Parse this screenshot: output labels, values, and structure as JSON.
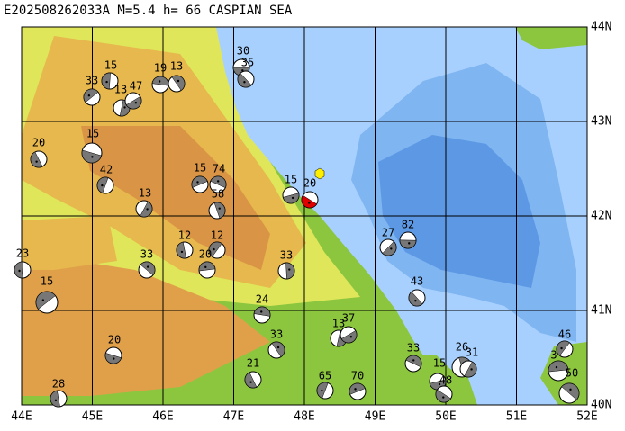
{
  "header": {
    "title": "E202508262033A  M=5.4  h= 66  CASPIAN SEA"
  },
  "map": {
    "lon_labels": [
      "44E",
      "45E",
      "46E",
      "47E",
      "48E",
      "49E",
      "50E",
      "51E",
      "52E"
    ],
    "lat_labels": [
      "44N",
      "43N",
      "42N",
      "41N",
      "40N"
    ],
    "events": [
      "30",
      "35",
      "15",
      "33",
      "19",
      "13",
      "13",
      "47",
      "15",
      "20",
      "42",
      "15",
      "74",
      "58",
      "13",
      "15",
      "20",
      "12",
      "12",
      "20",
      "33",
      "33",
      "27",
      "82",
      "43",
      "23",
      "15",
      "24",
      "33",
      "13",
      "37",
      "20",
      "21",
      "65",
      "70",
      "33",
      "26",
      "31",
      "15",
      "48",
      "28",
      "46",
      "3",
      "50"
    ]
  }
}
